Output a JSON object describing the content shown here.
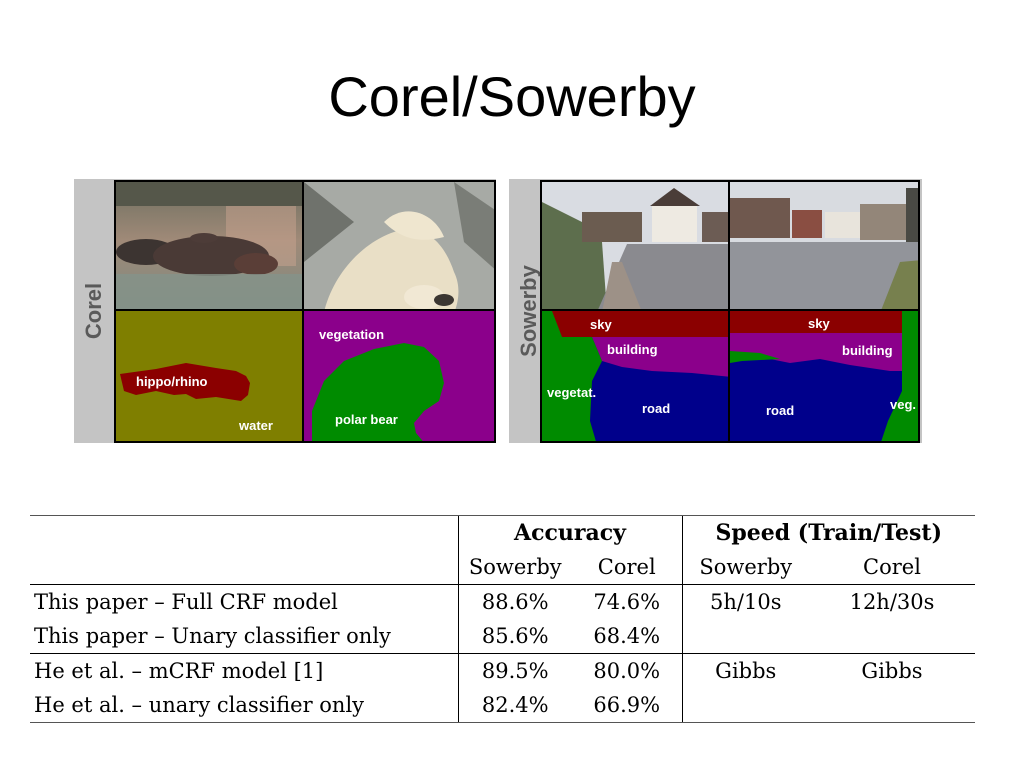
{
  "slide": {
    "title": "Corel/Sowerby"
  },
  "figure": {
    "corel": {
      "label": "Corel",
      "segments": {
        "hippo": "hippo/rhino",
        "water": "water",
        "vegetation": "vegetation",
        "polar_bear": "polar bear"
      }
    },
    "sowerby": {
      "label": "Sowerby",
      "left": {
        "sky": "sky",
        "building": "building",
        "vegetation": "vegetat.",
        "road": "road"
      },
      "right": {
        "sky": "sky",
        "building": "building",
        "vegetation": "veg.",
        "road": "road"
      }
    },
    "colors": {
      "sky": "#8b0000",
      "building": "#8b008b",
      "vegetation": "#008b00",
      "road": "#00008b",
      "water": "#7f7f00"
    }
  },
  "table": {
    "group_headers": [
      "Accuracy",
      "Speed (Train/Test)"
    ],
    "sub_headers": [
      "Sowerby",
      "Corel",
      "Sowerby",
      "Corel"
    ],
    "rows": [
      {
        "method": "This paper – Full CRF model",
        "acc_sowerby": "88.6%",
        "acc_corel": "74.6%",
        "speed_sowerby": "5h/10s",
        "speed_corel": "12h/30s"
      },
      {
        "method": "This paper – Unary classifier only",
        "acc_sowerby": "85.6%",
        "acc_corel": "68.4%",
        "speed_sowerby": "",
        "speed_corel": ""
      },
      {
        "method": "He et al. – mCRF model [1]",
        "acc_sowerby": "89.5%",
        "acc_corel": "80.0%",
        "speed_sowerby": "Gibbs",
        "speed_corel": "Gibbs"
      },
      {
        "method": "He et al. – unary classifier only",
        "acc_sowerby": "82.4%",
        "acc_corel": "66.9%",
        "speed_sowerby": "",
        "speed_corel": ""
      }
    ]
  }
}
